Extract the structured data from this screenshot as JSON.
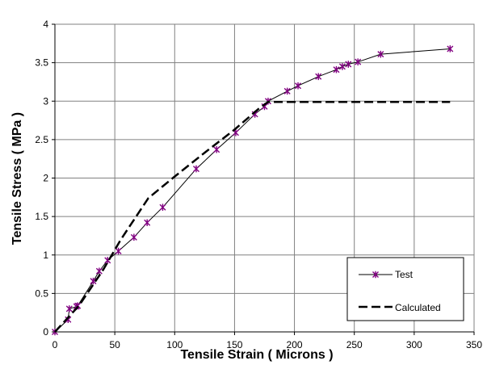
{
  "chart_data": {
    "type": "line",
    "xlabel": "Tensile Strain ( Microns )",
    "ylabel": "Tensile Stress ( MPa )",
    "xlim": [
      0,
      350
    ],
    "ylim": [
      0,
      4
    ],
    "x_ticks": [
      0,
      50,
      100,
      150,
      200,
      250,
      300,
      350
    ],
    "y_ticks": [
      0,
      0.5,
      1,
      1.5,
      2,
      2.5,
      3,
      3.5,
      4
    ],
    "x_tick_labels": [
      "0",
      "50",
      "100",
      "150",
      "200",
      "250",
      "300",
      "350"
    ],
    "y_tick_labels": [
      "0",
      "0.5",
      "1",
      "1.5",
      "2",
      "2.5",
      "3",
      "3.5",
      "4"
    ],
    "grid": true,
    "legend_position": "bottom-right",
    "series": [
      {
        "name": "Test",
        "color": "#800080",
        "line_color": "#000000",
        "marker": "star",
        "line_style": "solid",
        "x": [
          0,
          11,
          12,
          18,
          19,
          32,
          37,
          44,
          53,
          66,
          77,
          90,
          118,
          135,
          151,
          167,
          175,
          178,
          194,
          203,
          220,
          235,
          240,
          245,
          253,
          272,
          330
        ],
        "y": [
          0,
          0.16,
          0.3,
          0.33,
          0.34,
          0.66,
          0.79,
          0.93,
          1.05,
          1.23,
          1.42,
          1.62,
          2.12,
          2.37,
          2.59,
          2.83,
          2.93,
          3.0,
          3.13,
          3.2,
          3.32,
          3.41,
          3.45,
          3.48,
          3.51,
          3.61,
          3.68
        ]
      },
      {
        "name": "Calculated",
        "color": "#000000",
        "marker": "none",
        "line_style": "dashed",
        "x": [
          0,
          20,
          40,
          55,
          78,
          100,
          125,
          150,
          170,
          178,
          330
        ],
        "y": [
          0,
          0.34,
          0.8,
          1.2,
          1.74,
          2.02,
          2.33,
          2.63,
          2.9,
          2.99,
          2.99
        ]
      }
    ]
  }
}
